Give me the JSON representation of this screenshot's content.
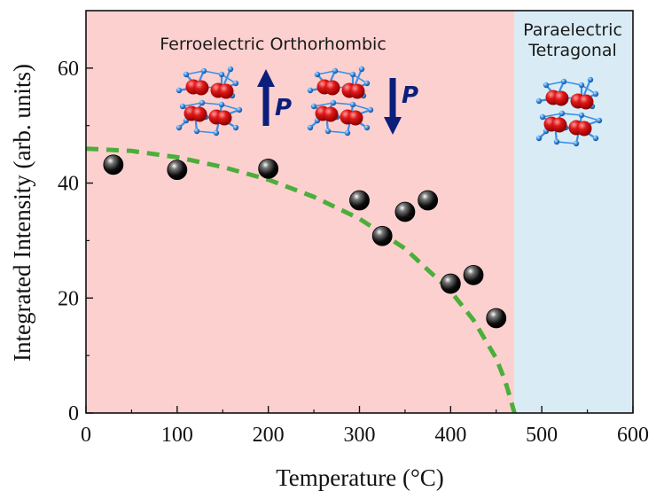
{
  "chart_data": {
    "type": "scatter",
    "xlabel": "Temperature (°C)",
    "ylabel": "Integrated Intensity (arb. units)",
    "xlim": [
      0,
      600
    ],
    "ylim": [
      0,
      70
    ],
    "xticks": [
      0,
      100,
      200,
      300,
      400,
      500,
      600
    ],
    "yticks": [
      0,
      20,
      40,
      60
    ],
    "grid": false,
    "points": [
      {
        "x": 30,
        "y": 43.2
      },
      {
        "x": 100,
        "y": 42.3
      },
      {
        "x": 200,
        "y": 42.5
      },
      {
        "x": 300,
        "y": 37
      },
      {
        "x": 325,
        "y": 30.8
      },
      {
        "x": 350,
        "y": 35
      },
      {
        "x": 375,
        "y": 37
      },
      {
        "x": 400,
        "y": 22.5
      },
      {
        "x": 425,
        "y": 24
      },
      {
        "x": 450,
        "y": 16.5
      }
    ],
    "fit_curve": {
      "style": "dashed",
      "color": "#4cae3a",
      "x": [
        0,
        50,
        100,
        150,
        200,
        250,
        300,
        350,
        400,
        425,
        450,
        460,
        465,
        470
      ],
      "y": [
        46,
        45.6,
        44.5,
        42.8,
        40.6,
        37.6,
        33.8,
        28.6,
        21.2,
        16.2,
        9.5,
        5.5,
        2.8,
        0
      ]
    },
    "regions": [
      {
        "label_lines": [
          "Ferroelectric Orthorhombic"
        ],
        "x_range": [
          0,
          470
        ],
        "color": "#fdd0d0"
      },
      {
        "label_lines": [
          "Paraelectric",
          "Tetragonal"
        ],
        "x_range": [
          470,
          600
        ],
        "color": "#d9ecf6"
      }
    ],
    "polarization_labels": [
      "P",
      "P"
    ],
    "colors": {
      "marker": "#111111",
      "atom_red": "#e01818",
      "atom_blue": "#3a8fe6",
      "arrow": "#0b1f7a"
    }
  }
}
